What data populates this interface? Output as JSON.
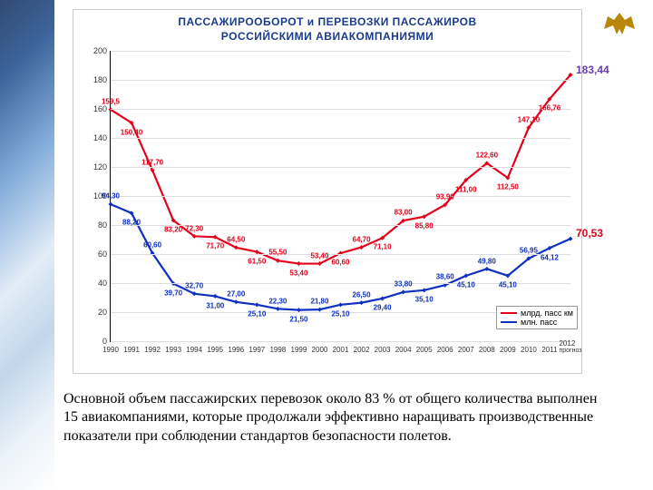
{
  "emblem": {
    "color": "#b8860b"
  },
  "decor": {
    "colors": [
      "#0d2b5a",
      "#1a4a8a",
      "#6fa0d6",
      "#dde9f5",
      "#b8d0e8",
      "#e8f0f8",
      "#ffffff"
    ]
  },
  "chart": {
    "type": "line",
    "title_line1": "ПАССАЖИРООБОРОТ и ПЕРЕВОЗКИ ПАССАЖИРОВ",
    "title_line2": "РОССИЙСКИМИ АВИАКОМПАНИЯМИ",
    "title_color": "#1a3a8a",
    "title_fontsize": 12,
    "background_color": "#ffffff",
    "grid_color": "#dddddd",
    "axis_color": "#000000",
    "ylim": [
      0,
      200
    ],
    "ytick_step": 20,
    "yticks": [
      0,
      20,
      40,
      60,
      80,
      100,
      120,
      140,
      160,
      180,
      200
    ],
    "x_labels": [
      "1990",
      "1991",
      "1992",
      "1993",
      "1994",
      "1995",
      "1996",
      "1997",
      "1998",
      "1999",
      "2000",
      "2001",
      "2002",
      "2003",
      "2004",
      "2005",
      "2006",
      "2007",
      "2008",
      "2009",
      "2010",
      "2011",
      "2012"
    ],
    "x_label_last_sub": "прогноз",
    "series": [
      {
        "name": "млрд. пасс км",
        "color": "#e3001b",
        "line_width": 2.2,
        "marker": "diamond",
        "values": [
          159.5,
          150.4,
          117.7,
          83.2,
          72.3,
          71.7,
          64.5,
          61.5,
          55.5,
          53.4,
          53.4,
          60.6,
          64.7,
          71.1,
          83.0,
          85.8,
          93.9,
          111.0,
          122.6,
          112.5,
          147.1,
          166.76,
          183.44
        ],
        "labels": [
          "159,5",
          "150,40",
          "117,70",
          "83,20",
          "72,30",
          "71,70",
          "64,50",
          "61,50",
          "55,50",
          "53,40",
          "53,40",
          "60,60",
          "64,70",
          "71,10",
          "83,00",
          "85,80",
          "93,90",
          "111,00",
          "122,60",
          "112,50",
          "147,10",
          "166,76",
          "183,44"
        ],
        "end_label": "183,44",
        "end_label_color": "#6a3ab2"
      },
      {
        "name": "млн. пасс",
        "color": "#1030c0",
        "line_width": 2.2,
        "marker": "diamond",
        "values": [
          94.3,
          88.2,
          60.6,
          39.7,
          32.7,
          31.0,
          27.0,
          25.1,
          22.3,
          21.5,
          21.8,
          25.1,
          26.5,
          29.4,
          33.8,
          35.1,
          38.6,
          45.1,
          49.8,
          45.1,
          56.95,
          64.12,
          70.53
        ],
        "labels": [
          "94,30",
          "88,20",
          "60,60",
          "39,70",
          "32,70",
          "31,00",
          "27,00",
          "25,10",
          "22,30",
          "21,50",
          "21,80",
          "25,10",
          "26,50",
          "29,40",
          "33,80",
          "35,10",
          "38,60",
          "45,10",
          "49,80",
          "45,10",
          "56,95",
          "64,12",
          "70,53"
        ],
        "end_label": "70,53",
        "end_label_color": "#e3001b"
      }
    ],
    "legend": {
      "position": "bottom-right",
      "items": [
        {
          "label": "млрд. пасс км",
          "color": "#e3001b"
        },
        {
          "label": "млн. пасс",
          "color": "#1030c0"
        }
      ]
    }
  },
  "body_text": "Основной объем пассажирских перевозок около 83 % от общего количества выполнен 15 авиакомпаниями, которые продолжали эффективно наращивать производственные показатели при соблюдении стандартов безопасности полетов."
}
